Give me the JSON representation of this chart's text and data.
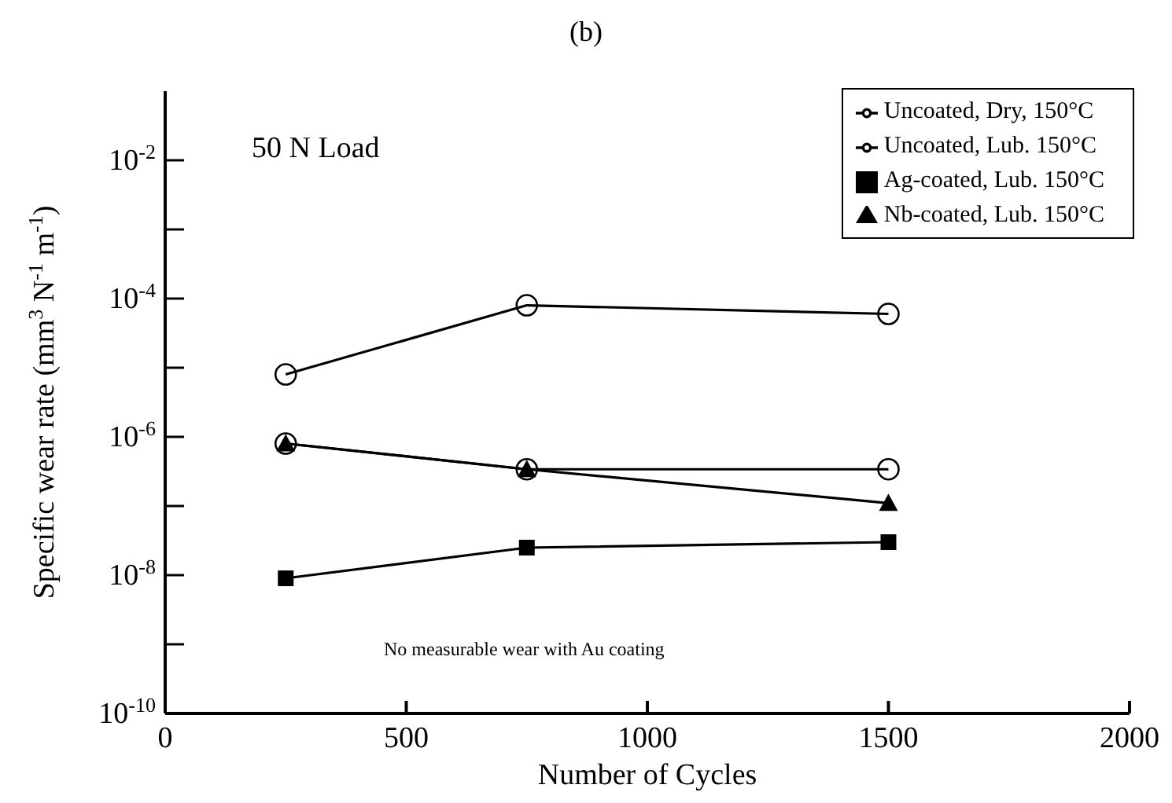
{
  "chart_data": {
    "type": "line",
    "title": "(b)",
    "xlabel": "Number of Cycles",
    "ylabel": "Specific wear rate (mm$^{3}$ N$^{-1}$ m$^{-1}$)",
    "annotations": [
      "50 N Load",
      "No measurable wear with Au coating"
    ],
    "x": [
      250,
      750,
      1500
    ],
    "series": [
      {
        "name": "Uncoated, Dry, 150°C",
        "color": "#000000",
        "marker": "circle",
        "values": [
          8e-06,
          8e-05,
          6e-05
        ]
      },
      {
        "name": "Uncoated, Lub. 150°C",
        "color": "#000000",
        "marker": "circle",
        "values": [
          8e-07,
          3.4e-07,
          3.4e-07
        ]
      },
      {
        "name": "Ag-coated, Lub. 150°C",
        "color": "#000000",
        "marker": "square",
        "values": [
          9e-09,
          2.5e-08,
          3e-08
        ]
      },
      {
        "name": "Nb-coated, Lub. 150°C",
        "color": "#000000",
        "marker": "triangle",
        "values": [
          8e-07,
          3.4e-07,
          1.1e-07
        ]
      }
    ],
    "log": "y",
    "xlim": [
      0,
      2000
    ],
    "xticks": [
      0,
      500,
      1000,
      1500,
      2000
    ],
    "ylim": [
      1e-10,
      0.1
    ],
    "yticks": [
      {
        "value": 1e-10,
        "label": "10$^{-10}$"
      },
      {
        "value": 1e-09,
        "label": null
      },
      {
        "value": 1e-08,
        "label": "10$^{-8}$"
      },
      {
        "value": 1e-07,
        "label": null
      },
      {
        "value": 1e-06,
        "label": "10$^{-6}$"
      },
      {
        "value": 1e-05,
        "label": null
      },
      {
        "value": 0.0001,
        "label": "10$^{-4}$"
      },
      {
        "value": 0.001,
        "label": null
      },
      {
        "value": 0.01,
        "label": "10$^{-2}$"
      }
    ],
    "grid": false,
    "legend": "top right",
    "line_style": "solid"
  }
}
